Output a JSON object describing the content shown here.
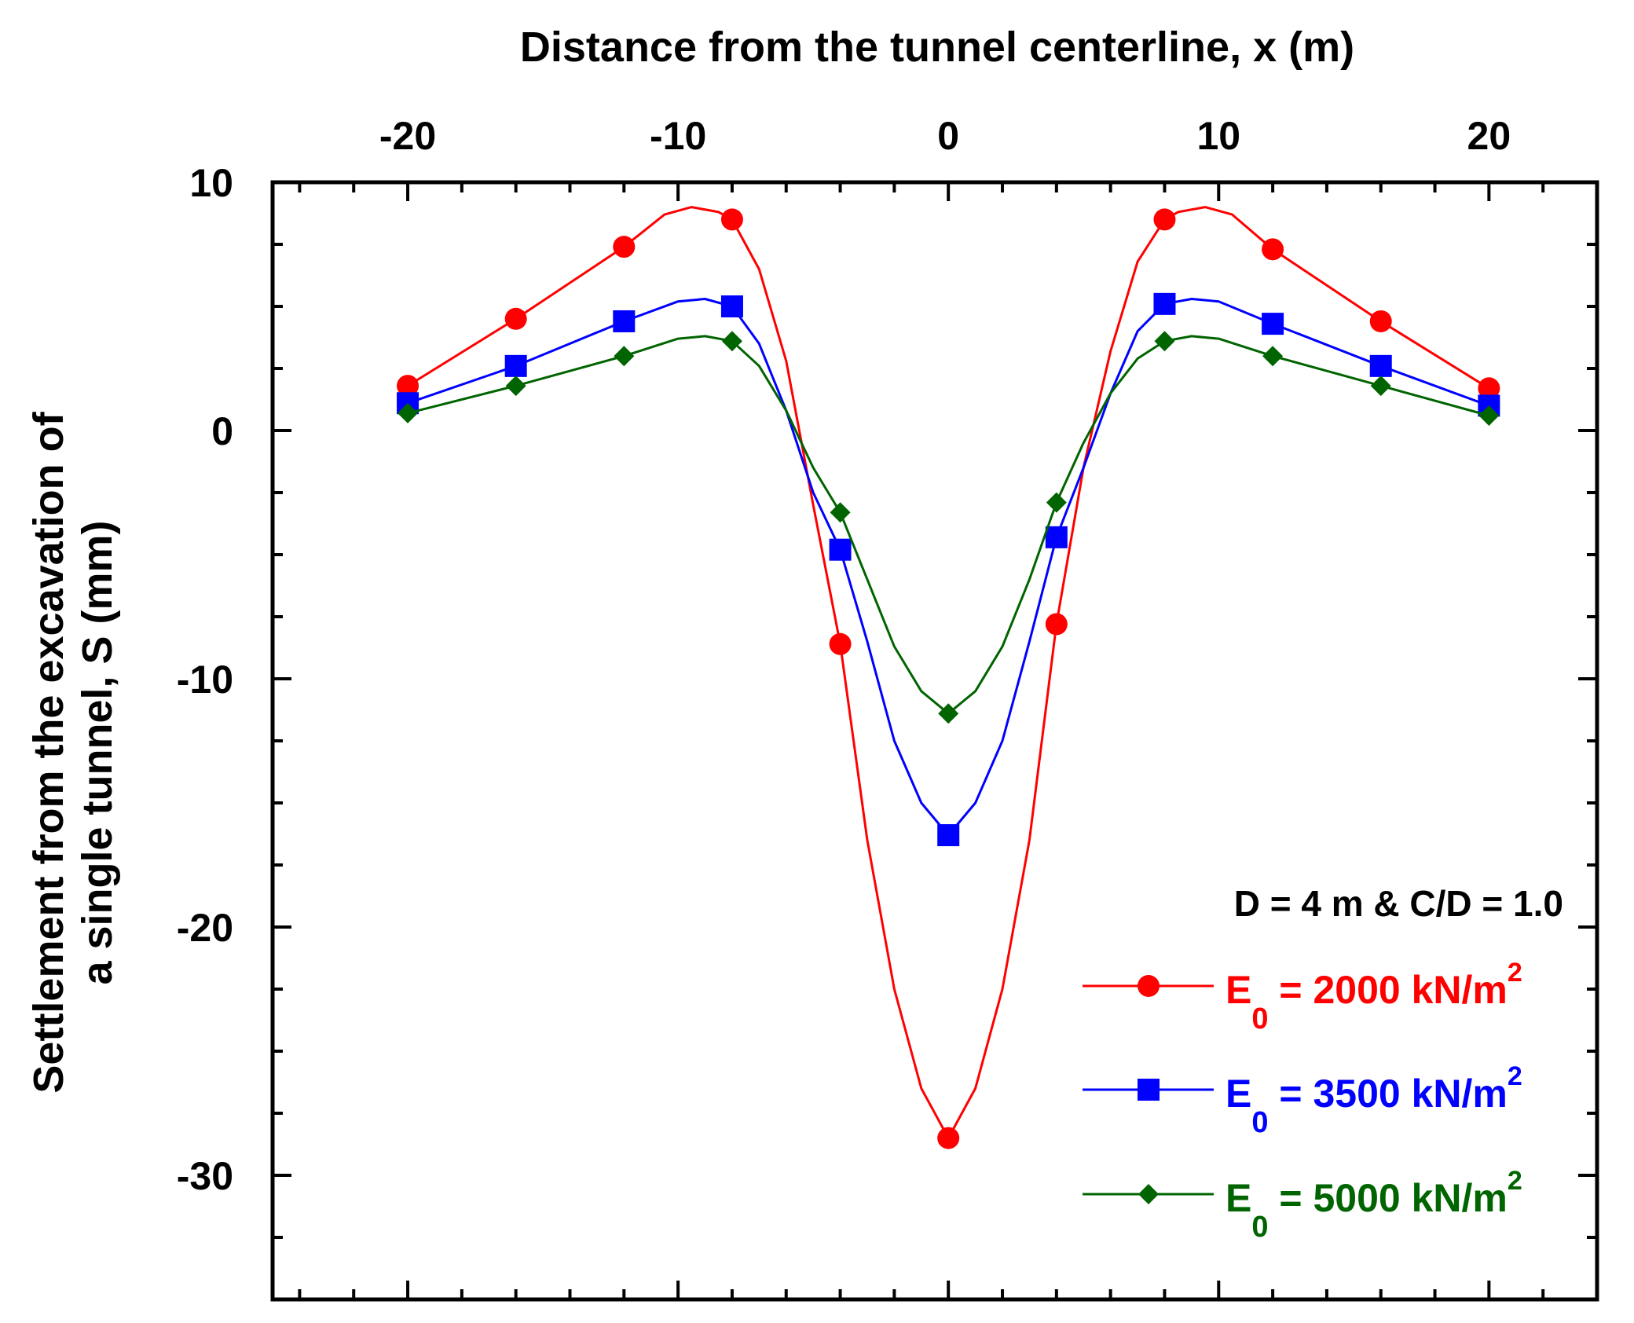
{
  "chart_data": {
    "type": "line",
    "title": "",
    "xlabel": "Distance from the tunnel centerline, x (m)",
    "ylabel_lines": [
      "Settlement from the excavation of",
      "a single tunnel, S (mm)"
    ],
    "xlim": [
      -25,
      24
    ],
    "ylim": [
      -35,
      10
    ],
    "xticks": [
      -20,
      -10,
      0,
      10,
      20
    ],
    "xtick_labels": [
      "-20",
      "-10",
      "0",
      "10",
      "20"
    ],
    "yticks": [
      10,
      0,
      -10,
      -20,
      -30
    ],
    "ytick_labels": [
      "10",
      "0",
      "-10",
      "-20",
      "-30"
    ],
    "x_axis_position": "top",
    "grid": false,
    "annotation": "D = 4 m & C/D = 1.0",
    "legend_position": "bottom-right",
    "series": [
      {
        "name": "E0 = 2000 kN/m2",
        "label_main": "E",
        "label_sub": "0",
        "label_rest": " = 2000 kN/m",
        "label_sup": "2",
        "color": "#ff0000",
        "marker": "circle",
        "x": [
          -20,
          -16,
          -12,
          -8,
          -4,
          0,
          4,
          8,
          12,
          16,
          20
        ],
        "y": [
          1.8,
          4.5,
          7.4,
          8.5,
          -8.6,
          -28.5,
          -7.8,
          8.5,
          7.3,
          4.4,
          1.7
        ],
        "curve_x": [
          -20,
          -16,
          -12,
          -10.5,
          -9.5,
          -8.5,
          -8,
          -7,
          -6,
          -5,
          -4,
          -3,
          -2,
          -1,
          0,
          1,
          2,
          3,
          4,
          5,
          6,
          7,
          8,
          8.5,
          9.5,
          10.5,
          12,
          16,
          20
        ],
        "curve_y": [
          1.8,
          4.5,
          7.4,
          8.7,
          9.0,
          8.8,
          8.5,
          6.5,
          2.8,
          -3.0,
          -8.6,
          -16.5,
          -22.5,
          -26.5,
          -28.5,
          -26.5,
          -22.5,
          -16.5,
          -7.8,
          -1.5,
          3.2,
          6.8,
          8.5,
          8.8,
          9.0,
          8.7,
          7.3,
          4.4,
          1.7
        ]
      },
      {
        "name": "E0 = 3500 kN/m2",
        "label_main": "E",
        "label_sub": "0",
        "label_rest": " = 3500 kN/m",
        "label_sup": "2",
        "color": "#0000ff",
        "marker": "square",
        "x": [
          -20,
          -16,
          -12,
          -8,
          -4,
          0,
          4,
          8,
          12,
          16,
          20
        ],
        "y": [
          1.1,
          2.6,
          4.4,
          5.0,
          -4.8,
          -16.3,
          -4.3,
          5.1,
          4.3,
          2.6,
          1.0
        ],
        "curve_x": [
          -20,
          -16,
          -12,
          -10,
          -9,
          -8,
          -7,
          -6,
          -5,
          -4,
          -3,
          -2,
          -1,
          0,
          1,
          2,
          3,
          4,
          5,
          6,
          7,
          8,
          9,
          10,
          12,
          16,
          20
        ],
        "curve_y": [
          1.1,
          2.6,
          4.4,
          5.2,
          5.3,
          5.0,
          3.5,
          0.8,
          -2.5,
          -4.8,
          -8.5,
          -12.5,
          -15.0,
          -16.3,
          -15.0,
          -12.5,
          -8.5,
          -4.3,
          -1.5,
          1.5,
          4.0,
          5.1,
          5.3,
          5.2,
          4.3,
          2.6,
          1.0
        ]
      },
      {
        "name": "E0 = 5000 kN/m2",
        "label_main": "E",
        "label_sub": "0",
        "label_rest": " = 5000 kN/m",
        "label_sup": "2",
        "color": "#006400",
        "marker": "diamond",
        "x": [
          -20,
          -16,
          -12,
          -8,
          -4,
          0,
          4,
          8,
          12,
          16,
          20
        ],
        "y": [
          0.7,
          1.8,
          3.0,
          3.6,
          -3.3,
          -11.4,
          -2.9,
          3.6,
          3.0,
          1.8,
          0.6
        ],
        "curve_x": [
          -20,
          -16,
          -12,
          -10,
          -9,
          -8,
          -7,
          -6,
          -5,
          -4,
          -3,
          -2,
          -1,
          0,
          1,
          2,
          3,
          4,
          5,
          6,
          7,
          8,
          9,
          10,
          12,
          16,
          20
        ],
        "curve_y": [
          0.7,
          1.8,
          3.0,
          3.7,
          3.8,
          3.6,
          2.6,
          0.8,
          -1.5,
          -3.3,
          -6.0,
          -8.7,
          -10.5,
          -11.4,
          -10.5,
          -8.7,
          -6.0,
          -2.9,
          -0.5,
          1.5,
          2.9,
          3.6,
          3.8,
          3.7,
          3.0,
          1.8,
          0.6
        ]
      }
    ]
  }
}
